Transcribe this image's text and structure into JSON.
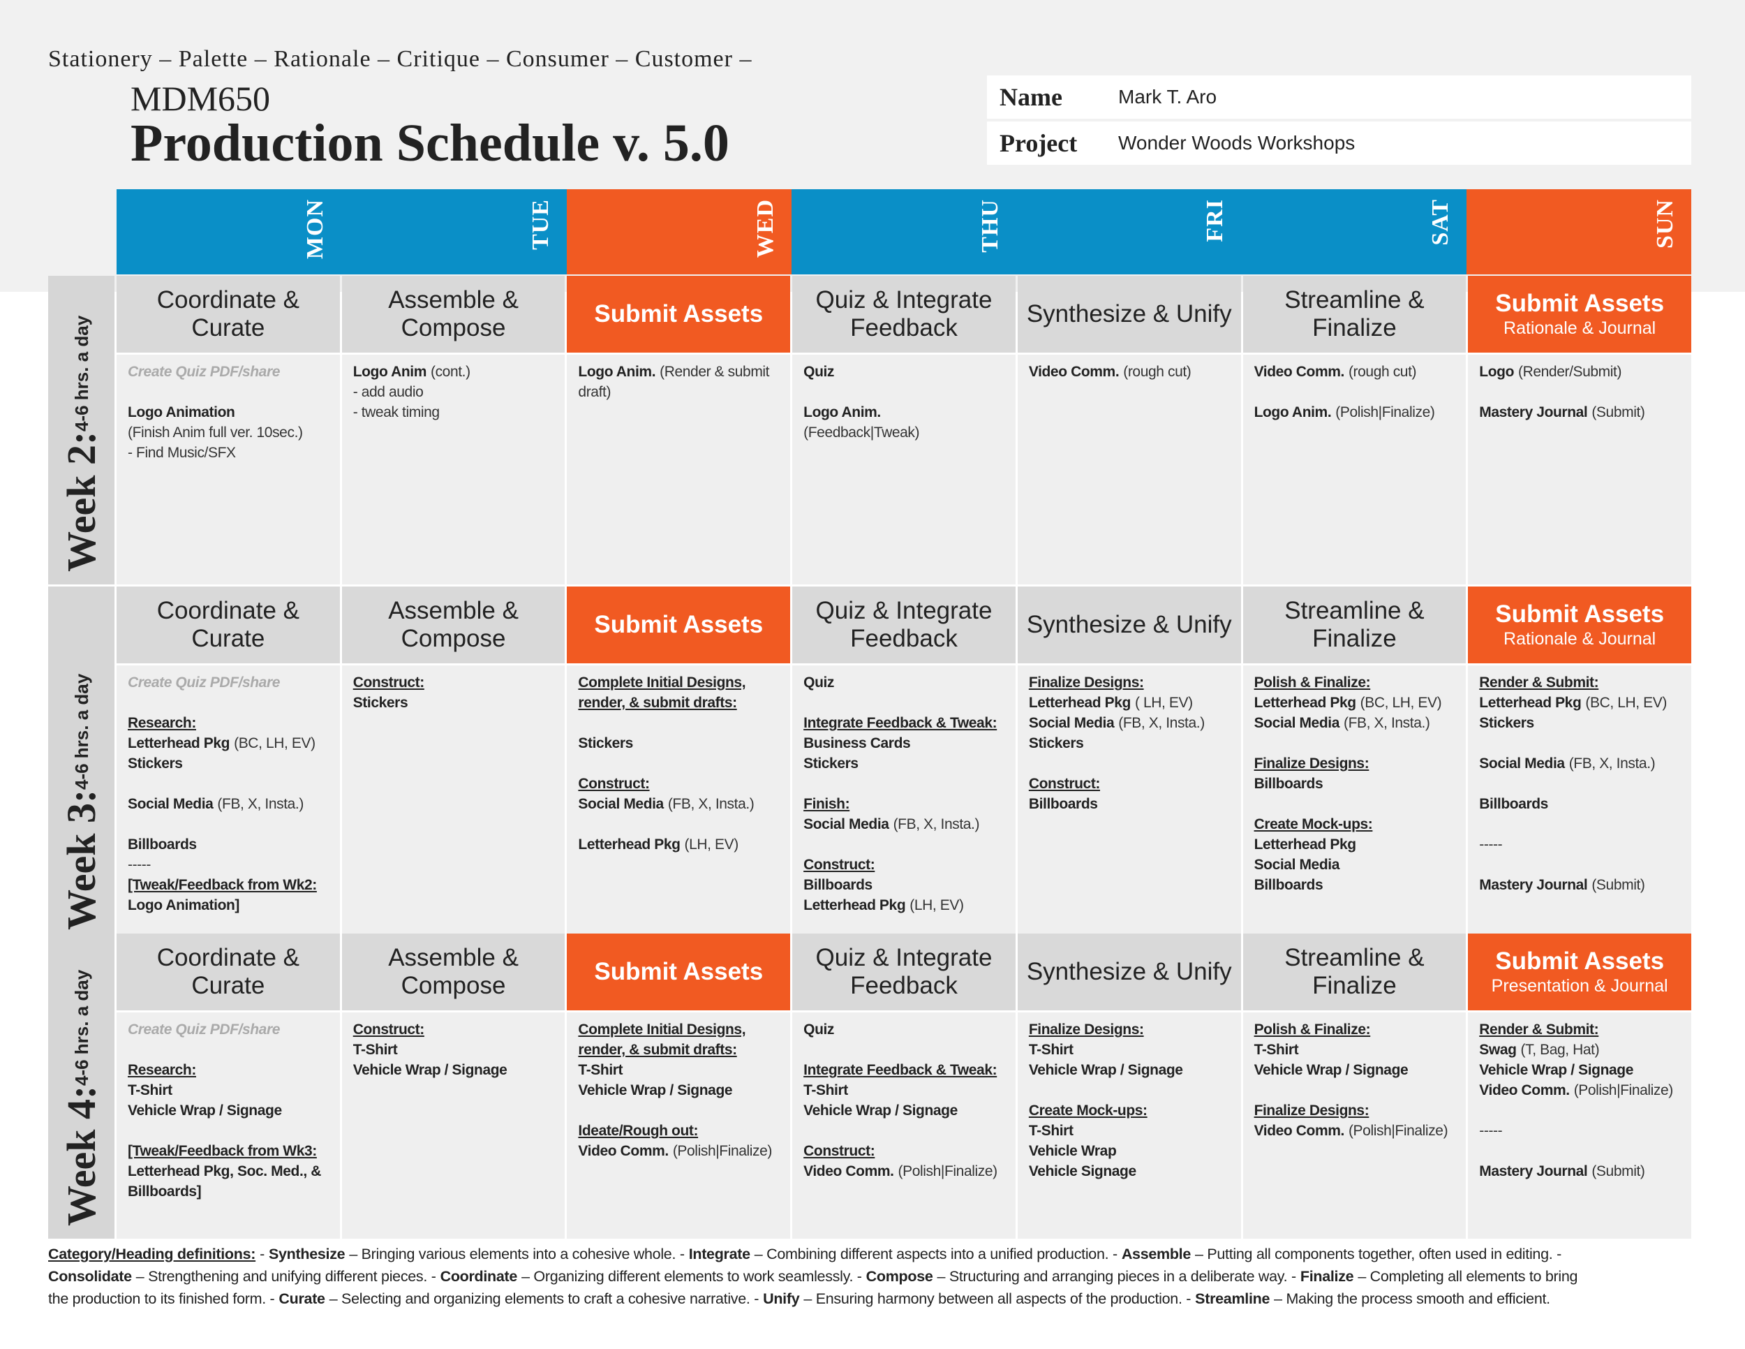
{
  "header": {
    "breadcrumb": "Stationery – Palette – Rationale – Critique – Consumer – Customer –",
    "course": "MDM650",
    "title": "Production Schedule v. 5.0",
    "info": [
      {
        "label": "Name",
        "value": "Mark T. Aro"
      },
      {
        "label": "Project",
        "value": "Wonder Woods Workshops"
      }
    ]
  },
  "days": [
    {
      "label": "MON",
      "color": "#0a8fc7"
    },
    {
      "label": "TUE",
      "color": "#0a8fc7"
    },
    {
      "label": "WED",
      "color": "#f15a22"
    },
    {
      "label": "THU",
      "color": "#0a8fc7"
    },
    {
      "label": "FRI",
      "color": "#0a8fc7"
    },
    {
      "label": "SAT",
      "color": "#0a8fc7"
    },
    {
      "label": "SUN",
      "color": "#f15a22"
    }
  ],
  "weeks": [
    {
      "week": "Week 2:",
      "hours": "4-6 hrs. a day",
      "headings": [
        {
          "title": "Coordinate & Curate"
        },
        {
          "title": "Assemble & Compose"
        },
        {
          "title": "Submit Assets",
          "accent": true
        },
        {
          "title": "Quiz & Integrate Feedback"
        },
        {
          "title": "Synthesize & Unify"
        },
        {
          "title": "Streamline & Finalize"
        },
        {
          "title": "Submit Assets",
          "subtitle": "Rationale & Journal",
          "accent": true
        }
      ],
      "cells": [
        [
          [
            {
              "muted": "Create Quiz PDF/share"
            }
          ],
          [
            {
              "bold": "Logo Animation"
            },
            {
              "light": "(Finish Anim full ver. 10sec.)"
            },
            {
              "light": "- Find Music/SFX"
            }
          ]
        ],
        [
          [
            {
              "bold": "Logo Anim",
              "light": "(cont.)"
            },
            {
              "light": "- add audio"
            },
            {
              "light": "- tweak timing"
            }
          ]
        ],
        [
          [
            {
              "bold": "Logo Anim.",
              "light": "(Render & submit draft)"
            }
          ]
        ],
        [
          [
            {
              "bold": "Quiz"
            }
          ],
          [
            {
              "bold": "Logo Anim."
            },
            {
              "light": "(Feedback|Tweak)"
            }
          ]
        ],
        [
          [
            {
              "bold": "Video Comm.",
              "light": "(rough cut)"
            }
          ]
        ],
        [
          [
            {
              "bold": "Video Comm.",
              "light": "(rough cut)"
            }
          ],
          [
            {
              "bold": "Logo Anim.",
              "light": "(Polish|Finalize)"
            }
          ]
        ],
        [
          [
            {
              "bold": "Logo",
              "light": "(Render/Submit)"
            }
          ],
          [
            {
              "bold": "Mastery Journal",
              "light": "(Submit)"
            }
          ]
        ]
      ]
    },
    {
      "week": "Week 3:",
      "hours": "4-6 hrs. a day",
      "headings": [
        {
          "title": "Coordinate & Curate"
        },
        {
          "title": "Assemble & Compose"
        },
        {
          "title": "Submit Assets",
          "accent": true
        },
        {
          "title": "Quiz & Integrate Feedback"
        },
        {
          "title": "Synthesize & Unify"
        },
        {
          "title": "Streamline & Finalize"
        },
        {
          "title": "Submit Assets",
          "subtitle": "Rationale & Journal",
          "accent": true
        }
      ],
      "cells": [
        [
          [
            {
              "muted": "Create Quiz PDF/share"
            }
          ],
          [
            {
              "heading": "Research:"
            },
            {
              "bold": "Letterhead Pkg",
              "light": "(BC, LH, EV)"
            },
            {
              "bold": "Stickers"
            }
          ],
          [
            {
              "bold": "Social Media",
              "light": "(FB, X, Insta.)"
            }
          ],
          [
            {
              "bold": "Billboards"
            },
            {
              "light": "-----"
            },
            {
              "heading": "[Tweak/Feedback from Wk2:"
            },
            {
              "bold": "Logo Animation]"
            }
          ]
        ],
        [
          [
            {
              "heading": "Construct:"
            },
            {
              "bold": "Stickers"
            }
          ]
        ],
        [
          [
            {
              "heading": "Complete Initial Designs, render, & submit drafts:"
            }
          ],
          [
            {
              "bold": "Stickers"
            }
          ],
          [
            {
              "heading": "Construct:"
            },
            {
              "bold": "Social Media",
              "light": "(FB, X, Insta.)"
            }
          ],
          [
            {
              "bold": "Letterhead Pkg",
              "light": "(LH, EV)"
            }
          ]
        ],
        [
          [
            {
              "bold": "Quiz"
            }
          ],
          [
            {
              "heading": "Integrate Feedback & Tweak:"
            },
            {
              "bold": "Business Cards"
            },
            {
              "bold": "Stickers"
            }
          ],
          [
            {
              "heading": "Finish:"
            },
            {
              "bold": "Social Media",
              "light": "(FB, X, Insta.)"
            }
          ],
          [
            {
              "heading": "Construct:"
            },
            {
              "bold": "Billboards"
            },
            {
              "bold": "Letterhead Pkg",
              "light": "(LH, EV)"
            }
          ]
        ],
        [
          [
            {
              "heading": "Finalize Designs:"
            },
            {
              "bold": "Letterhead Pkg",
              "light": "( LH, EV)"
            },
            {
              "bold": "Social Media",
              "light": "(FB, X, Insta.)"
            },
            {
              "bold": "Stickers"
            }
          ],
          [
            {
              "heading": "Construct:"
            },
            {
              "bold": "Billboards"
            }
          ]
        ],
        [
          [
            {
              "heading": "Polish & Finalize:"
            },
            {
              "bold": "Letterhead Pkg",
              "light": "(BC, LH, EV)"
            },
            {
              "bold": "Social Media",
              "light": "(FB, X, Insta.)"
            }
          ],
          [
            {
              "heading": "Finalize Designs:"
            },
            {
              "bold": "Billboards"
            }
          ],
          [
            {
              "heading": "Create Mock-ups:"
            },
            {
              "bold": "Letterhead Pkg"
            },
            {
              "bold": "Social Media"
            },
            {
              "bold": "Billboards"
            }
          ]
        ],
        [
          [
            {
              "heading": "Render & Submit:"
            },
            {
              "bold": "Letterhead Pkg",
              "light": "(BC, LH, EV)"
            },
            {
              "bold": "Stickers"
            }
          ],
          [
            {
              "bold": "Social Media",
              "light": "(FB, X, Insta.)"
            }
          ],
          [
            {
              "bold": "Billboards"
            }
          ],
          [
            {
              "light": "-----"
            }
          ],
          [
            {
              "bold": "Mastery Journal",
              "light": "(Submit)"
            }
          ]
        ]
      ]
    },
    {
      "week": "Week 4:",
      "hours": "4-6 hrs. a day",
      "headings": [
        {
          "title": "Coordinate & Curate"
        },
        {
          "title": "Assemble & Compose"
        },
        {
          "title": "Submit Assets",
          "accent": true
        },
        {
          "title": "Quiz & Integrate Feedback"
        },
        {
          "title": "Synthesize & Unify"
        },
        {
          "title": "Streamline & Finalize"
        },
        {
          "title": "Submit Assets",
          "subtitle": "Presentation & Journal",
          "accent": true
        }
      ],
      "cells": [
        [
          [
            {
              "muted": "Create Quiz PDF/share"
            }
          ],
          [
            {
              "heading": "Research:"
            },
            {
              "bold": "T-Shirt"
            },
            {
              "bold": "Vehicle Wrap / Signage"
            }
          ],
          [
            {
              "heading": "[Tweak/Feedback from Wk3:"
            },
            {
              "bold": "Letterhead Pkg, Soc. Med., & Billboards]"
            }
          ]
        ],
        [
          [
            {
              "heading": "Construct:"
            },
            {
              "bold": "T-Shirt"
            },
            {
              "bold": "Vehicle Wrap / Signage"
            }
          ]
        ],
        [
          [
            {
              "heading": "Complete Initial Designs, render, & submit drafts:"
            },
            {
              "bold": "T-Shirt"
            },
            {
              "bold": "Vehicle Wrap / Signage"
            }
          ],
          [
            {
              "heading": "Ideate/Rough out:"
            },
            {
              "bold": "Video Comm.",
              "light": "(Polish|Finalize)"
            }
          ]
        ],
        [
          [
            {
              "bold": "Quiz"
            }
          ],
          [
            {
              "heading": "Integrate Feedback & Tweak:"
            },
            {
              "bold": "T-Shirt"
            },
            {
              "bold": "Vehicle Wrap / Signage"
            }
          ],
          [
            {
              "heading": "Construct:"
            },
            {
              "bold": "Video Comm.",
              "light": "(Polish|Finalize)"
            }
          ]
        ],
        [
          [
            {
              "heading": "Finalize Designs:"
            },
            {
              "bold": "T-Shirt"
            },
            {
              "bold": "Vehicle Wrap / Signage"
            }
          ],
          [
            {
              "heading": "Create Mock-ups:"
            },
            {
              "bold": "T-Shirt"
            },
            {
              "bold": "Vehicle Wrap"
            },
            {
              "bold": "Vehicle Signage"
            }
          ]
        ],
        [
          [
            {
              "heading": "Polish & Finalize:"
            },
            {
              "bold": "T-Shirt"
            },
            {
              "bold": "Vehicle Wrap / Signage"
            }
          ],
          [
            {
              "heading": "Finalize Designs:"
            },
            {
              "bold": "Video Comm.",
              "light": "(Polish|Finalize)"
            }
          ]
        ],
        [
          [
            {
              "heading": "Render & Submit:"
            },
            {
              "bold": "Swag",
              "light": "(T, Bag, Hat)"
            },
            {
              "bold": "Vehicle Wrap / Signage"
            },
            {
              "bold": "Video Comm.",
              "light": "(Polish|Finalize)"
            }
          ],
          [
            {
              "light": "-----"
            }
          ],
          [
            {
              "bold": "Mastery Journal",
              "light": "(Submit)"
            }
          ]
        ]
      ]
    }
  ],
  "definitions": {
    "heading": "Category/Heading definitions:",
    "separator": "-",
    "items": [
      {
        "term": "Synthesize",
        "text": "– Bringing various elements into a cohesive whole. -"
      },
      {
        "term": "Integrate",
        "text": "– Combining different aspects into a unified production. -"
      },
      {
        "term": "Assemble",
        "text": "– Putting all components together, often used in editing. -"
      },
      {
        "term": "Consolidate",
        "text": "– Strengthening and unifying different pieces. -"
      },
      {
        "term": "Coordinate",
        "text": "– Organizing different elements to work seamlessly. -"
      },
      {
        "term": "Compose",
        "text": "– Structuring and arranging pieces in a deliberate way. -"
      },
      {
        "term": "Finalize",
        "text": "– Completing all elements to bring the production to its finished form. -"
      },
      {
        "term": "Curate",
        "text": "– Selecting and organizing elements to craft a cohesive narrative. -"
      },
      {
        "term": "Unify",
        "text": "– Ensuring harmony between all aspects of the production. -"
      },
      {
        "term": "Streamline",
        "text": "– Making the process smooth and efficient."
      }
    ]
  }
}
